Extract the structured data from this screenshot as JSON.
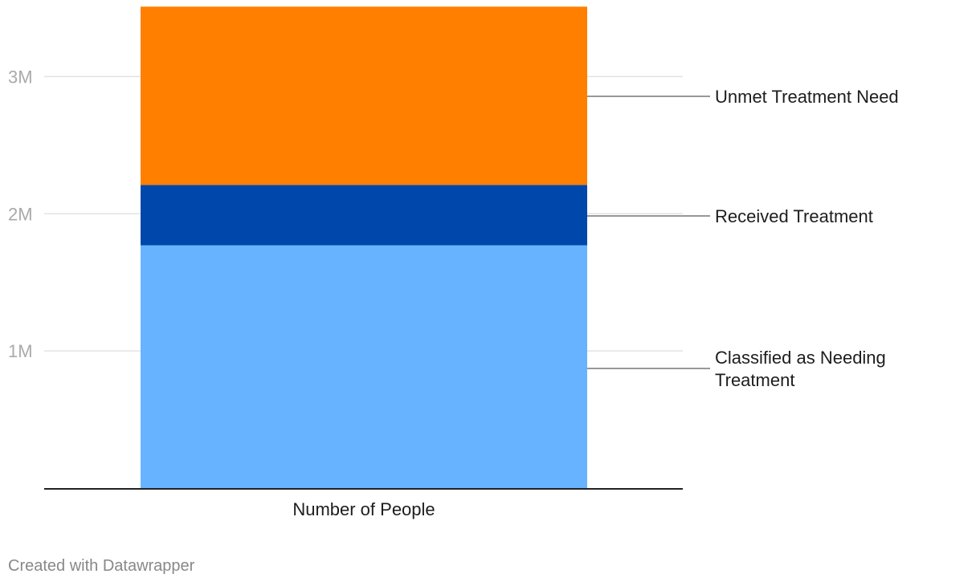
{
  "chart_data": {
    "type": "bar",
    "stacked": true,
    "categories": [
      "Number of People"
    ],
    "series": [
      {
        "name": "Classified as Needing Treatment",
        "values": [
          1770000
        ],
        "color": "#67b3ff"
      },
      {
        "name": "Received Treatment",
        "values": [
          440000
        ],
        "color": "#0047ab"
      },
      {
        "name": "Unmet Treatment Need",
        "values": [
          1300000
        ],
        "color": "#ff7f00"
      }
    ],
    "ylim": [
      0,
      3500000
    ],
    "yticks": [
      1000000,
      2000000,
      3000000
    ],
    "ytick_labels": [
      "1M",
      "2M",
      "3M"
    ],
    "grid": true,
    "legend": "right, direct labels"
  },
  "footer": {
    "credit": "Created with Datawrapper"
  }
}
